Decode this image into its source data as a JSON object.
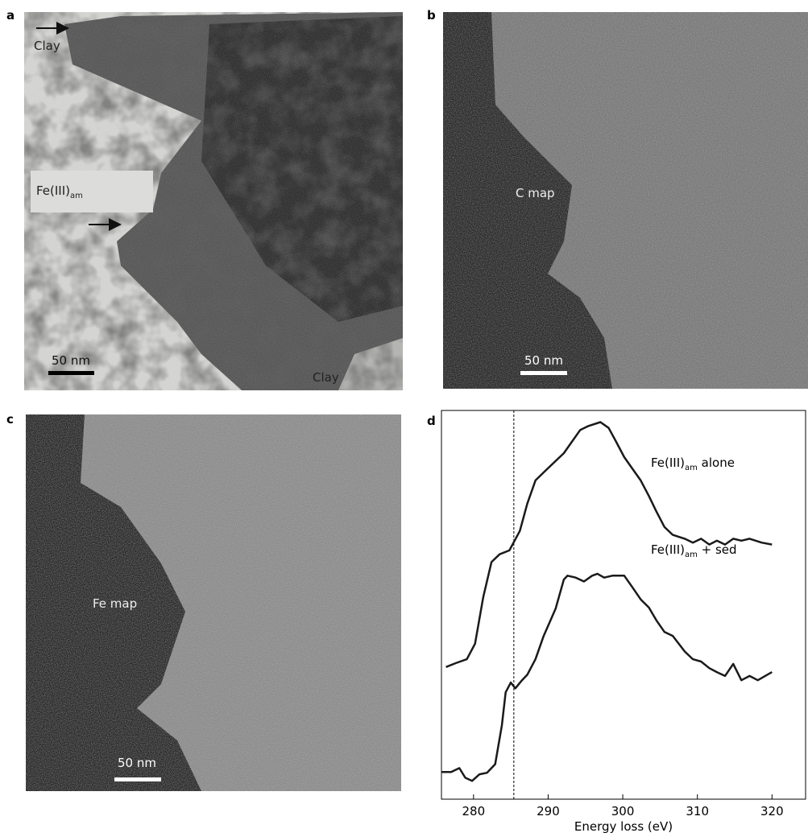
{
  "panels": {
    "a": {
      "letter": "a",
      "clay_top": "Clay",
      "clay_bottom": "Clay",
      "label": {
        "main": "Fe(III)",
        "sub": "am"
      },
      "scale": "50 nm"
    },
    "b": {
      "letter": "b",
      "label": "C map",
      "scale": "50 nm"
    },
    "c": {
      "letter": "c",
      "label": "Fe map",
      "scale": "50 nm"
    },
    "d": {
      "letter": "d"
    }
  },
  "chart_data": {
    "type": "line",
    "xlabel": "Energy loss (eV)",
    "xlim": [
      275.7,
      324.5
    ],
    "xticks": [
      280,
      290,
      300,
      310,
      320
    ],
    "ylim": [
      0,
      100
    ],
    "reference_x": 285.4,
    "series": [
      {
        "name": {
          "main": "Fe(III)",
          "sub": "am",
          "suffix": " alone"
        },
        "color": "#1a1a1a",
        "x": [
          276.3,
          277.6,
          279.1,
          280.2,
          281.3,
          282.4,
          283.5,
          284.8,
          286.2,
          287.2,
          288.3,
          289.9,
          292.1,
          293.2,
          294.3,
          295.4,
          297.0,
          298.1,
          299.1,
          300.2,
          301.3,
          302.4,
          303.5,
          304.5,
          305.6,
          306.7,
          308.3,
          309.4,
          310.5,
          311.6,
          312.6,
          313.7,
          314.8,
          315.9,
          317.0,
          318.6,
          320.0
        ],
        "values": [
          34,
          35,
          36,
          40,
          52,
          61,
          63,
          64,
          69,
          76,
          82,
          85,
          89,
          92,
          95,
          96,
          97,
          95.5,
          92,
          88,
          85,
          82,
          78,
          74,
          70,
          68,
          67,
          66,
          67,
          65.5,
          66.5,
          65.5,
          67,
          66.5,
          67,
          66,
          65.5
        ]
      },
      {
        "name": {
          "main": "Fe(III)",
          "sub": "am",
          "suffix": " + sed"
        },
        "color": "#1a1a1a",
        "x": [
          275.7,
          277.0,
          278.1,
          278.9,
          279.8,
          280.8,
          281.8,
          282.9,
          283.8,
          284.3,
          285.0,
          285.6,
          286.5,
          287.2,
          288.3,
          289.4,
          291.0,
          292.1,
          292.6,
          293.7,
          294.8,
          295.9,
          296.6,
          297.5,
          298.6,
          300.2,
          301.3,
          302.4,
          303.5,
          304.5,
          305.6,
          306.7,
          308.3,
          309.4,
          310.5,
          311.6,
          312.6,
          313.7,
          314.8,
          315.9,
          317.0,
          318.1,
          320.0
        ],
        "values": [
          7,
          7,
          8,
          5.5,
          4.7,
          6.4,
          6.8,
          9,
          19,
          27.5,
          30,
          28.5,
          30.6,
          32,
          36,
          42,
          49,
          56.5,
          57.5,
          57,
          56,
          57.5,
          58,
          57,
          57.5,
          57.5,
          54.5,
          51.4,
          49.3,
          46,
          43,
          42,
          38,
          36,
          35.4,
          33.7,
          32.7,
          31.7,
          34.8,
          30.6,
          31.7,
          30.6,
          32.7
        ]
      }
    ]
  }
}
